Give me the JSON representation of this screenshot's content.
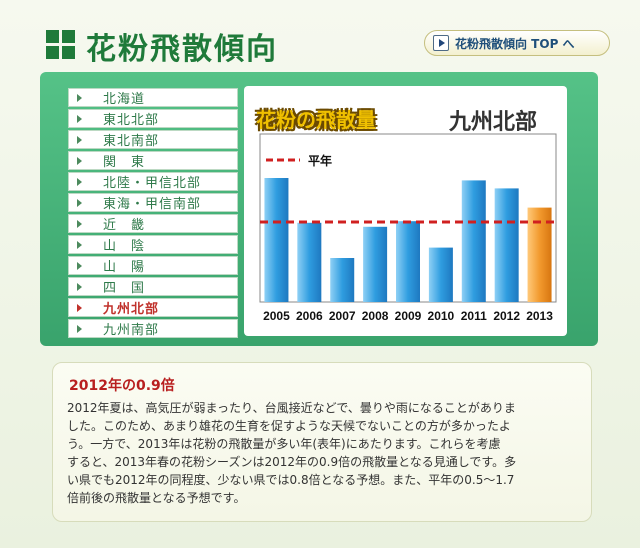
{
  "header": {
    "title": "花粉飛散傾向",
    "top_link_label": "花粉飛散傾向 TOP へ"
  },
  "menu": {
    "items": [
      {
        "label": "北海道",
        "active": false
      },
      {
        "label": "東北北部",
        "active": false
      },
      {
        "label": "東北南部",
        "active": false
      },
      {
        "label": "関　東",
        "active": false
      },
      {
        "label": "北陸・甲信北部",
        "active": false
      },
      {
        "label": "東海・甲信南部",
        "active": false
      },
      {
        "label": "近　畿",
        "active": false
      },
      {
        "label": "山　陰",
        "active": false
      },
      {
        "label": "山　陽",
        "active": false
      },
      {
        "label": "四　国",
        "active": false
      },
      {
        "label": "九州北部",
        "active": true
      },
      {
        "label": "九州南部",
        "active": false
      }
    ]
  },
  "chart_panel": {
    "title": "花粉の飛散量",
    "region": "九州北部"
  },
  "chart_data": {
    "type": "bar",
    "title": "花粉の飛散量",
    "subtitle": "九州北部",
    "categories": [
      "2005",
      "2006",
      "2007",
      "2008",
      "2009",
      "2010",
      "2011",
      "2012",
      "2013"
    ],
    "values": [
      1.55,
      0.99,
      0.55,
      0.94,
      1.01,
      0.68,
      1.52,
      1.42,
      1.18
    ],
    "reference_line": {
      "label": "平年",
      "value": 1.0
    },
    "highlight_category": "2013",
    "ylim": [
      0,
      2.1
    ],
    "colors": {
      "bar": "#2f9de0",
      "highlight": "#f29a2e",
      "reference": "#d02020"
    }
  },
  "info": {
    "heading": "2012年の0.9倍",
    "lines": [
      "2012年夏は、高気圧が弱まったり、台風接近などで、曇りや雨になることがありま",
      "した。このため、あまり雄花の生育を促すような天候でないことの方が多かったよ",
      "う。一方で、2013年は花粉の飛散量が多い年(表年)にあたります。これらを考慮",
      "すると、2013年春の花粉シーズンは2012年の0.9倍の飛散量となる見通しです。多",
      "い県でも2012年の同程度、少ない県では0.8倍となる予想。また、平年の0.5～1.7",
      "倍前後の飛散量となる予想です。"
    ]
  }
}
